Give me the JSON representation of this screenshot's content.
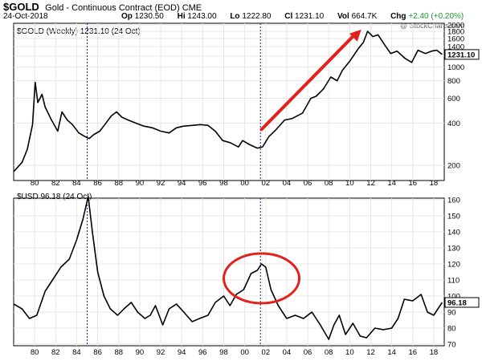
{
  "header": {
    "symbol": "$GOLD",
    "description": "Gold - Continuous Contract (EOD) CME",
    "date": "24-Oct-2018",
    "open_label": "Op",
    "open": "1230.50",
    "high_label": "Hi",
    "high": "1243.00",
    "low_label": "Lo",
    "low": "1222.80",
    "close_label": "Cl",
    "close": "1231.10",
    "vol_label": "Vol",
    "vol": "664.7K",
    "chg_label": "Chg",
    "chg": "+2.40 (+0.20%)"
  },
  "watermark": "@ StockCharts.com",
  "colors": {
    "price_line": "#000000",
    "annotation": "#e0211c",
    "vline": "#1a1aa0",
    "grid": "#e6e6e6",
    "change_positive": "#1a9a2a"
  },
  "chart_data": [
    {
      "type": "line",
      "title": "$GOLD (Weekly) 1231.10 (24 Oct)",
      "x_tick_labels": [
        "80",
        "82",
        "84",
        "86",
        "88",
        "90",
        "92",
        "94",
        "96",
        "98",
        "00",
        "02",
        "04",
        "06",
        "08",
        "10",
        "12",
        "14",
        "16",
        "18"
      ],
      "y_scale": "log",
      "ylim": [
        160,
        2000
      ],
      "y_ticks": [
        200,
        400,
        600,
        800,
        1000,
        1200,
        1400,
        1600,
        1800,
        2000
      ],
      "last_value_label": "1231.10",
      "series": [
        {
          "x": [
            1978.0,
            1978.8,
            1979.3,
            1979.8,
            1980.05,
            1980.3,
            1980.7,
            1981.0,
            1981.6,
            1982.2,
            1982.6,
            1983.1,
            1983.6,
            1984.2,
            1984.8,
            1985.2,
            1985.6,
            1986.2,
            1986.8,
            1987.3,
            1987.8,
            1988.3,
            1988.9,
            1989.6,
            1990.4,
            1991.2,
            1992.0,
            1992.8,
            1993.5,
            1994.2,
            1995.0,
            1995.8,
            1996.5,
            1997.2,
            1997.9,
            1998.6,
            1999.4,
            1999.8,
            2000.5,
            2001.2,
            2001.7,
            2002.3,
            2003.0,
            2003.8,
            2004.5,
            2005.5,
            2006.3,
            2006.8,
            2007.5,
            2008.2,
            2008.8,
            2009.3,
            2010.0,
            2010.8,
            2011.3,
            2011.7,
            2012.2,
            2012.7,
            2013.3,
            2013.9,
            2014.5,
            2015.3,
            2015.9,
            2016.5,
            2017.2,
            2017.8,
            2018.3,
            2018.8
          ],
          "y": [
            180,
            210,
            260,
            390,
            780,
            560,
            640,
            520,
            420,
            350,
            480,
            420,
            390,
            340,
            320,
            310,
            330,
            350,
            400,
            450,
            480,
            440,
            420,
            400,
            380,
            370,
            350,
            340,
            370,
            380,
            385,
            390,
            385,
            350,
            300,
            290,
            270,
            300,
            280,
            265,
            270,
            320,
            360,
            420,
            430,
            470,
            600,
            620,
            700,
            850,
            800,
            950,
            1100,
            1350,
            1500,
            1800,
            1650,
            1700,
            1450,
            1250,
            1300,
            1150,
            1080,
            1320,
            1250,
            1300,
            1320,
            1231
          ]
        }
      ],
      "markers": [
        "vertical line at 1985",
        "vertical line at 2001.5",
        "red arrow 2001.6 → 2011.1"
      ]
    },
    {
      "type": "line",
      "title": "$USD 96.18 (24 Oct)",
      "x_tick_labels": [
        "80",
        "82",
        "84",
        "86",
        "88",
        "90",
        "92",
        "94",
        "96",
        "98",
        "00",
        "02",
        "04",
        "06",
        "08",
        "10",
        "12",
        "14",
        "16",
        "18"
      ],
      "ylim": [
        70,
        160
      ],
      "y_ticks": [
        70,
        80,
        90,
        100,
        110,
        120,
        130,
        140,
        150,
        160
      ],
      "last_value_label": "96.18",
      "series": [
        {
          "x": [
            1978.0,
            1978.8,
            1979.5,
            1980.2,
            1981.0,
            1981.7,
            1982.5,
            1983.3,
            1984.0,
            1984.6,
            1985.1,
            1985.5,
            1986.0,
            1986.6,
            1987.2,
            1987.9,
            1988.5,
            1989.2,
            1989.8,
            1990.5,
            1991.0,
            1991.5,
            1992.2,
            1992.8,
            1993.5,
            1994.2,
            1995.0,
            1995.7,
            1996.5,
            1997.2,
            1998.0,
            1998.6,
            1999.2,
            1999.9,
            2000.6,
            2001.2,
            2001.6,
            2002.0,
            2002.5,
            2003.2,
            2004.0,
            2004.8,
            2005.6,
            2006.4,
            2007.2,
            2008.0,
            2008.5,
            2009.0,
            2009.6,
            2010.3,
            2011.0,
            2011.6,
            2012.4,
            2013.2,
            2014.0,
            2014.6,
            2015.2,
            2016.0,
            2016.8,
            2017.4,
            2018.0,
            2018.8
          ],
          "y": [
            95,
            92,
            86,
            88,
            103,
            110,
            118,
            123,
            135,
            148,
            162,
            140,
            115,
            100,
            92,
            88,
            92,
            96,
            90,
            86,
            88,
            94,
            82,
            92,
            95,
            90,
            84,
            86,
            88,
            96,
            100,
            94,
            101,
            104,
            114,
            116,
            120,
            118,
            104,
            94,
            86,
            88,
            86,
            90,
            82,
            73,
            82,
            88,
            76,
            83,
            75,
            74,
            80,
            79,
            80,
            86,
            98,
            97,
            101,
            90,
            88,
            96
          ]
        }
      ],
      "markers": [
        "vertical line at 1985",
        "vertical line at 2001.5",
        "red circle around the 2001-2002 peak"
      ]
    }
  ]
}
